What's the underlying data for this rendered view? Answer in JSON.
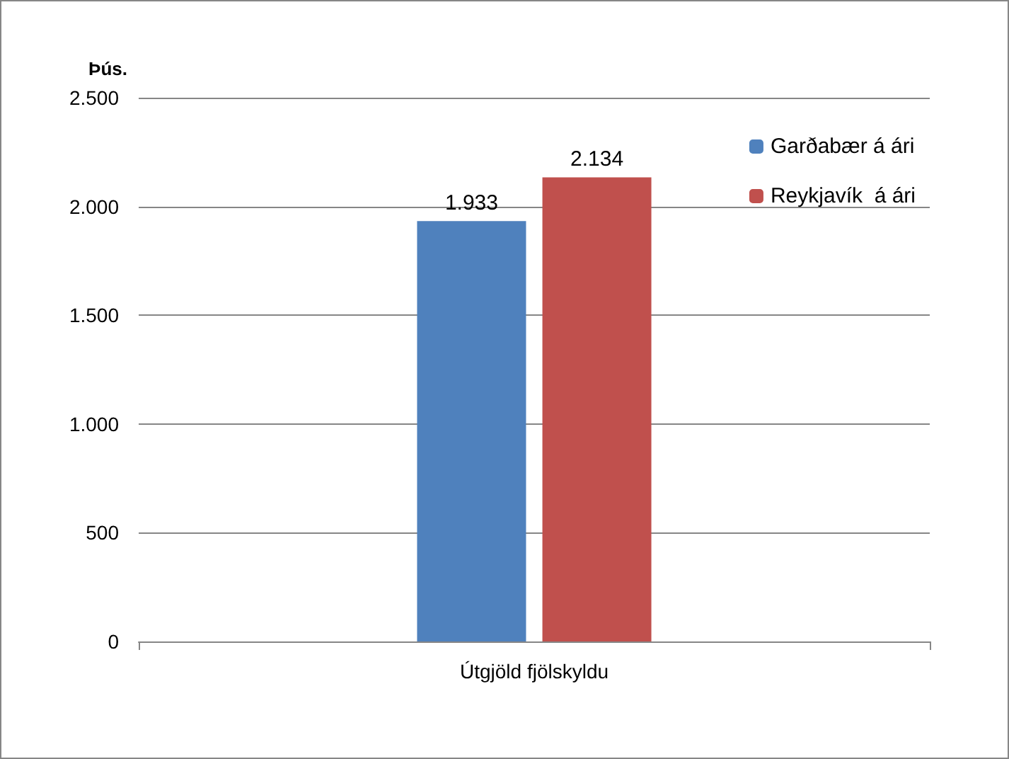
{
  "chart_data": {
    "type": "bar",
    "ylabel": "Þús.",
    "categories": [
      "Útgjöld fjölskyldu"
    ],
    "series": [
      {
        "name": "Garðabær á ári",
        "color": "#4f81bd",
        "values": [
          1933
        ],
        "value_labels": [
          "1.933"
        ]
      },
      {
        "name": "Reykjavík  á ári",
        "color": "#c0504d",
        "values": [
          2134
        ],
        "value_labels": [
          "2.134"
        ]
      }
    ],
    "ylim": [
      0,
      2500
    ],
    "yticks": [
      {
        "value": 0,
        "label": "0"
      },
      {
        "value": 500,
        "label": "500"
      },
      {
        "value": 1000,
        "label": "1.000"
      },
      {
        "value": 1500,
        "label": "1.500"
      },
      {
        "value": 2000,
        "label": "2.000"
      },
      {
        "value": 2500,
        "label": "2.500"
      }
    ],
    "grid": "y",
    "legend": "top right"
  }
}
